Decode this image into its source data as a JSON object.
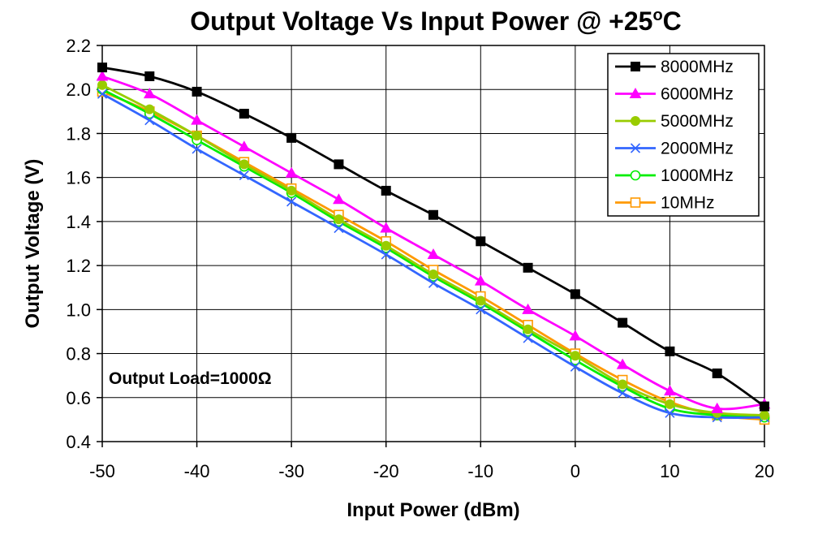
{
  "chart_data": {
    "type": "line",
    "title": "Output Voltage Vs Input Power @ +25",
    "title_suffix": "o",
    "title_unit": "C",
    "xlabel": "Input Power (dBm)",
    "ylabel": "Output Voltage (V)",
    "annotation": "Output Load=1000Ω",
    "xlim": [
      -50,
      20
    ],
    "ylim": [
      0.4,
      2.2
    ],
    "xticks": [
      -50,
      -40,
      -30,
      -20,
      -10,
      0,
      10,
      20
    ],
    "yticks": [
      "0.4",
      "0.6",
      "0.8",
      "1.0",
      "1.2",
      "1.4",
      "1.6",
      "1.8",
      "2.0",
      "2.2"
    ],
    "grid": true,
    "legend_position": "top-right",
    "x": [
      -50,
      -45,
      -40,
      -35,
      -30,
      -25,
      -20,
      -15,
      -10,
      -5,
      0,
      5,
      10,
      15,
      20
    ],
    "series": [
      {
        "name": "8000MHz",
        "color": "#000000",
        "marker": "square-filled",
        "values": [
          2.1,
          2.06,
          1.99,
          1.89,
          1.78,
          1.66,
          1.54,
          1.43,
          1.31,
          1.19,
          1.07,
          0.94,
          0.81,
          0.71,
          0.56
        ]
      },
      {
        "name": "6000MHz",
        "color": "#ff00ff",
        "marker": "triangle-filled",
        "values": [
          2.06,
          1.98,
          1.86,
          1.74,
          1.62,
          1.5,
          1.37,
          1.25,
          1.13,
          1.0,
          0.88,
          0.75,
          0.63,
          0.55,
          0.57
        ]
      },
      {
        "name": "5000MHz",
        "color": "#99cc00",
        "marker": "circle-filled",
        "values": [
          2.02,
          1.91,
          1.79,
          1.66,
          1.54,
          1.41,
          1.29,
          1.16,
          1.04,
          0.91,
          0.79,
          0.66,
          0.57,
          0.53,
          0.52
        ]
      },
      {
        "name": "2000MHz",
        "color": "#3366ff",
        "marker": "x",
        "values": [
          1.98,
          1.86,
          1.73,
          1.61,
          1.49,
          1.37,
          1.25,
          1.12,
          1.0,
          0.87,
          0.74,
          0.62,
          0.53,
          0.51,
          0.51
        ]
      },
      {
        "name": "1000MHz",
        "color": "#00ee00",
        "marker": "circle-open",
        "values": [
          2.0,
          1.89,
          1.77,
          1.65,
          1.53,
          1.4,
          1.28,
          1.15,
          1.03,
          0.9,
          0.77,
          0.65,
          0.55,
          0.52,
          0.51
        ]
      },
      {
        "name": "10MHz",
        "color": "#ff9900",
        "marker": "square-open",
        "values": [
          1.99,
          1.9,
          1.79,
          1.67,
          1.55,
          1.43,
          1.31,
          1.18,
          1.06,
          0.93,
          0.8,
          0.68,
          0.58,
          0.52,
          0.5
        ]
      }
    ]
  }
}
